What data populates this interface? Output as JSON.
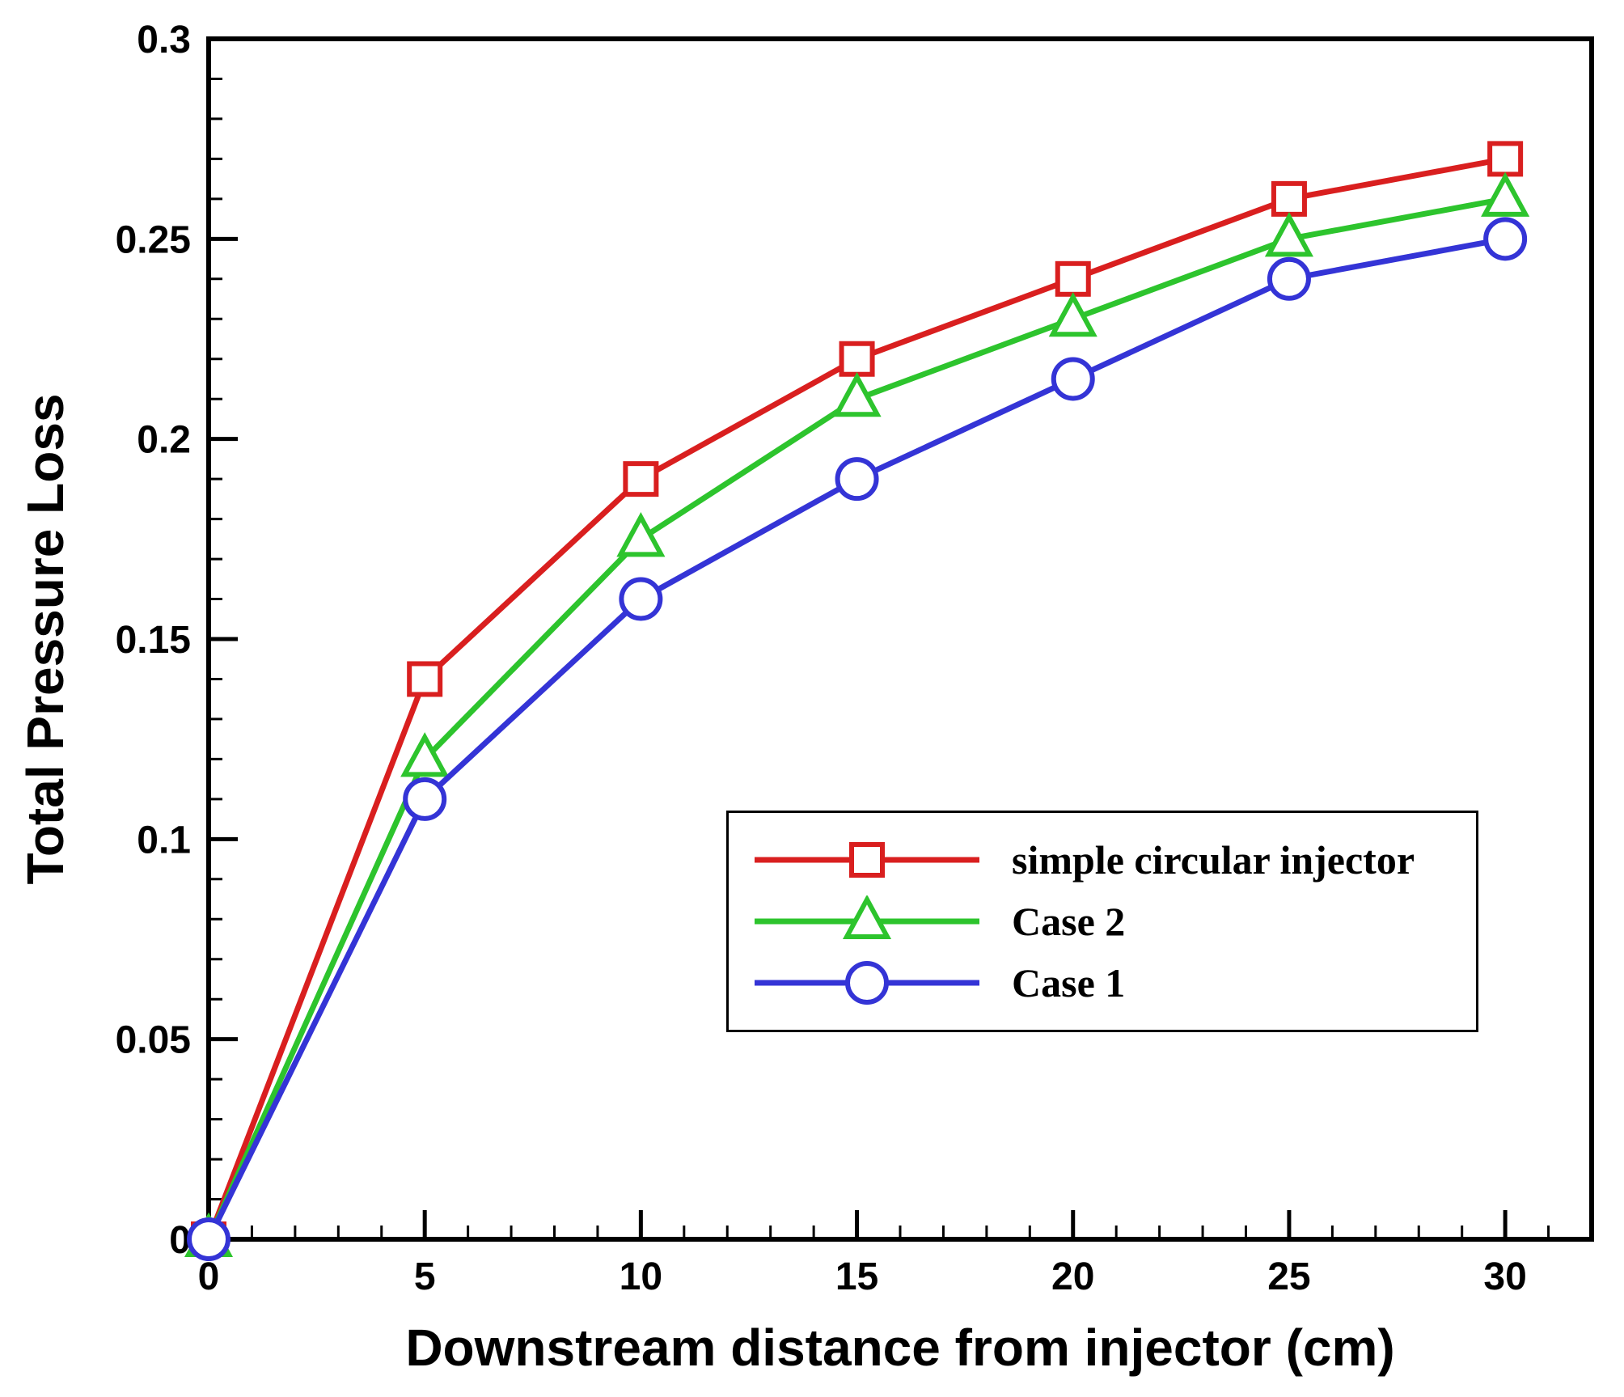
{
  "chart_data": {
    "type": "line",
    "title": "",
    "xlabel": "Downstream distance from injector (cm)",
    "ylabel": "Total Pressure Loss",
    "xlim": [
      0,
      32
    ],
    "ylim": [
      0,
      0.3
    ],
    "grid": false,
    "legend_position": "inside-lower-right",
    "x_major_ticks": [
      0,
      5,
      10,
      15,
      20,
      25,
      30
    ],
    "x_tick_labels": [
      "0",
      "5",
      "10",
      "15",
      "20",
      "25",
      "30"
    ],
    "x_minor_step": 1,
    "y_major_ticks": [
      0,
      0.05,
      0.1,
      0.15,
      0.2,
      0.25,
      0.3
    ],
    "y_tick_labels": [
      "0",
      "0.05",
      "0.1",
      "0.15",
      "0.2",
      "0.25",
      "0.3"
    ],
    "y_minor_step": 0.01,
    "x": [
      0,
      5,
      10,
      15,
      20,
      25,
      30
    ],
    "series": [
      {
        "name": "simple circular injector",
        "color": "#d91f1f",
        "marker": "square",
        "values": [
          0,
          0.14,
          0.19,
          0.22,
          0.24,
          0.26,
          0.27
        ]
      },
      {
        "name": "Case 2",
        "color": "#2dc42d",
        "marker": "triangle",
        "values": [
          0,
          0.12,
          0.175,
          0.21,
          0.23,
          0.25,
          0.26
        ]
      },
      {
        "name": "Case 1",
        "color": "#3434d6",
        "marker": "circle",
        "values": [
          0,
          0.11,
          0.16,
          0.19,
          0.215,
          0.24,
          0.25
        ]
      }
    ]
  }
}
